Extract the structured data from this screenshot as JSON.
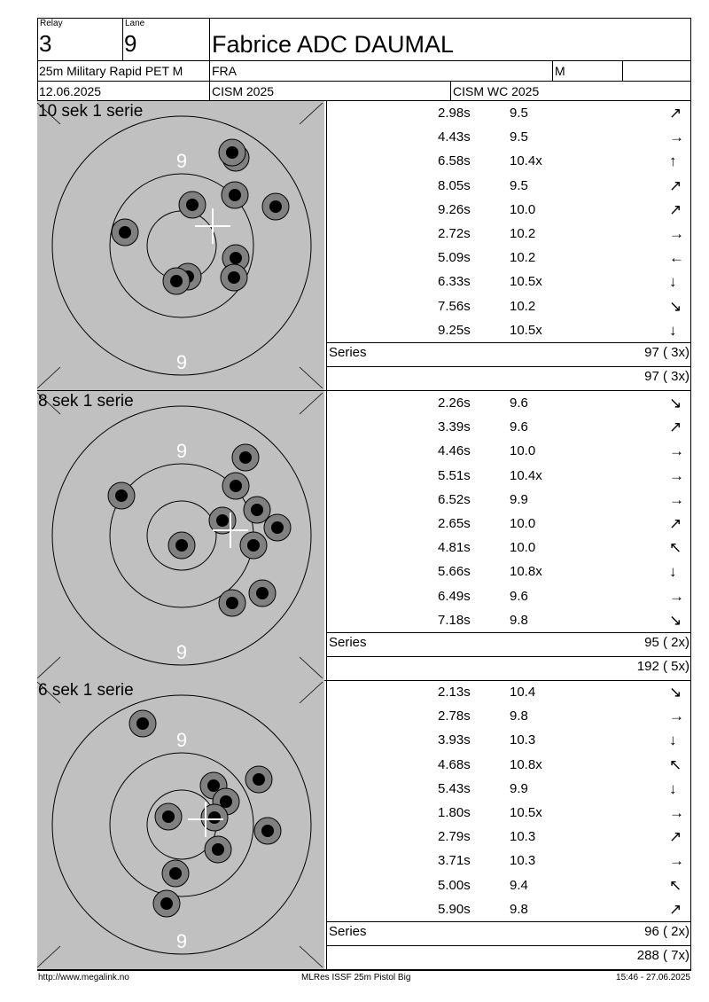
{
  "header": {
    "relay_label": "Relay",
    "relay": "3",
    "lane_label": "Lane",
    "lane": "9",
    "name": "Fabrice ADC DAUMAL",
    "event": "25m Military Rapid PET M",
    "nation": "FRA",
    "gender": "M",
    "date": "12.06.2025",
    "competition": "CISM 2025",
    "match": "CISM WC 2025"
  },
  "series": [
    {
      "title": "10 sek 1 serie",
      "ring_label": "9",
      "shots": [
        {
          "time": "2.98s",
          "score": "9.5",
          "arrow": "↗"
        },
        {
          "time": "4.43s",
          "score": "9.5",
          "arrow": "→"
        },
        {
          "time": "6.58s",
          "score": "10.4x",
          "arrow": "↑"
        },
        {
          "time": "8.05s",
          "score": "9.5",
          "arrow": "↗"
        },
        {
          "time": "9.26s",
          "score": "10.0",
          "arrow": "↗"
        },
        {
          "time": "2.72s",
          "score": "10.2",
          "arrow": "→"
        },
        {
          "time": "5.09s",
          "score": "10.2",
          "arrow": "←"
        },
        {
          "time": "6.33s",
          "score": "10.5x",
          "arrow": "↓"
        },
        {
          "time": "7.56s",
          "score": "10.2",
          "arrow": "↘"
        },
        {
          "time": "9.25s",
          "score": "10.5x",
          "arrow": "↓"
        }
      ],
      "series_label": "Series",
      "series_total": "97 ( 3x)",
      "cumulative": "97 ( 3x)"
    },
    {
      "title": "8 sek 1 serie",
      "ring_label": "9",
      "shots": [
        {
          "time": "2.26s",
          "score": "9.6",
          "arrow": "↘"
        },
        {
          "time": "3.39s",
          "score": "9.6",
          "arrow": "↗"
        },
        {
          "time": "4.46s",
          "score": "10.0",
          "arrow": "→"
        },
        {
          "time": "5.51s",
          "score": "10.4x",
          "arrow": "→"
        },
        {
          "time": "6.52s",
          "score": "9.9",
          "arrow": "→"
        },
        {
          "time": "2.65s",
          "score": "10.0",
          "arrow": "↗"
        },
        {
          "time": "4.81s",
          "score": "10.0",
          "arrow": "↖"
        },
        {
          "time": "5.66s",
          "score": "10.8x",
          "arrow": "↓"
        },
        {
          "time": "6.49s",
          "score": "9.6",
          "arrow": "→"
        },
        {
          "time": "7.18s",
          "score": "9.8",
          "arrow": "↘"
        }
      ],
      "series_label": "Series",
      "series_total": "95 ( 2x)",
      "cumulative": "192 ( 5x)"
    },
    {
      "title": "6 sek 1 serie",
      "ring_label": "9",
      "shots": [
        {
          "time": "2.13s",
          "score": "10.4",
          "arrow": "↘"
        },
        {
          "time": "2.78s",
          "score": "9.8",
          "arrow": "→"
        },
        {
          "time": "3.93s",
          "score": "10.3",
          "arrow": "↓"
        },
        {
          "time": "4.68s",
          "score": "10.8x",
          "arrow": "↖"
        },
        {
          "time": "5.43s",
          "score": "9.9",
          "arrow": "↓"
        },
        {
          "time": "1.80s",
          "score": "10.5x",
          "arrow": "→"
        },
        {
          "time": "2.79s",
          "score": "10.3",
          "arrow": "↗"
        },
        {
          "time": "3.71s",
          "score": "10.3",
          "arrow": "→"
        },
        {
          "time": "5.00s",
          "score": "9.4",
          "arrow": "↖"
        },
        {
          "time": "5.90s",
          "score": "9.8",
          "arrow": "↗"
        }
      ],
      "series_label": "Series",
      "series_total": "96 ( 2x)",
      "cumulative": "288 ( 7x)"
    }
  ],
  "footer": {
    "left": "http://www.megalink.no",
    "center": "MLRes ISSF 25m Pistol Big",
    "right": "15:46 - 27.06.2025"
  }
}
